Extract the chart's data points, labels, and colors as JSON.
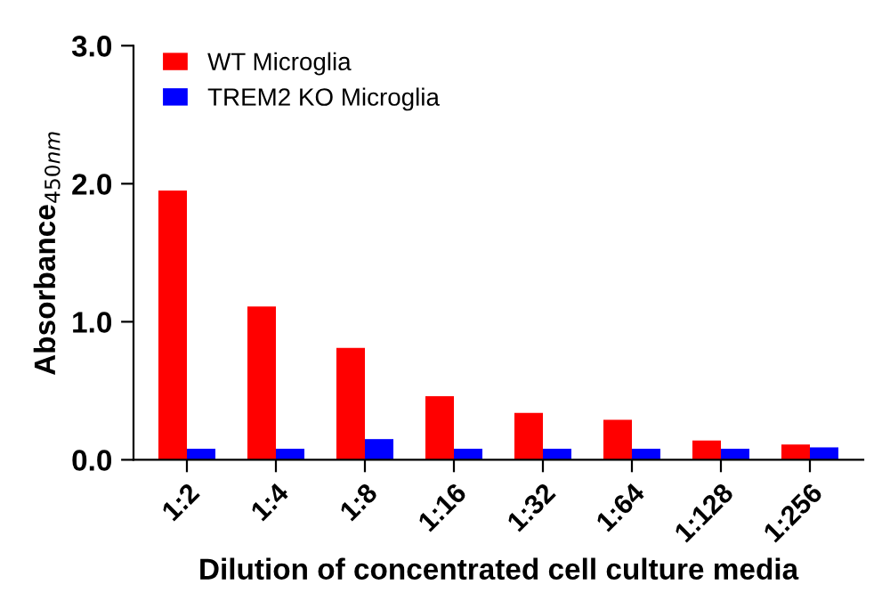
{
  "chart_data": {
    "type": "bar",
    "xlabel": "Dilution of concentrated cell culture media",
    "ylabel": "Absorbance$_{450nm}$",
    "categories": [
      "1:2",
      "1:4",
      "1:8",
      "1:16",
      "1:32",
      "1:64",
      "1:128",
      "1:256"
    ],
    "series": [
      {
        "name": "WT Microglia",
        "color": "#ff0000",
        "values": [
          1.95,
          1.11,
          0.81,
          0.46,
          0.34,
          0.29,
          0.14,
          0.11
        ]
      },
      {
        "name": "TREM2 KO Microglia",
        "color": "#0000ff",
        "values": [
          0.08,
          0.08,
          0.15,
          0.08,
          0.08,
          0.08,
          0.08,
          0.09
        ]
      }
    ],
    "ylim": [
      0,
      3.0
    ],
    "yticks": [
      {
        "value": 0,
        "label": "0.0"
      },
      {
        "value": 1,
        "label": "1.0"
      },
      {
        "value": 2,
        "label": "2.0"
      },
      {
        "value": 3,
        "label": "3.0"
      }
    ],
    "grid": false,
    "legend": "top left"
  }
}
